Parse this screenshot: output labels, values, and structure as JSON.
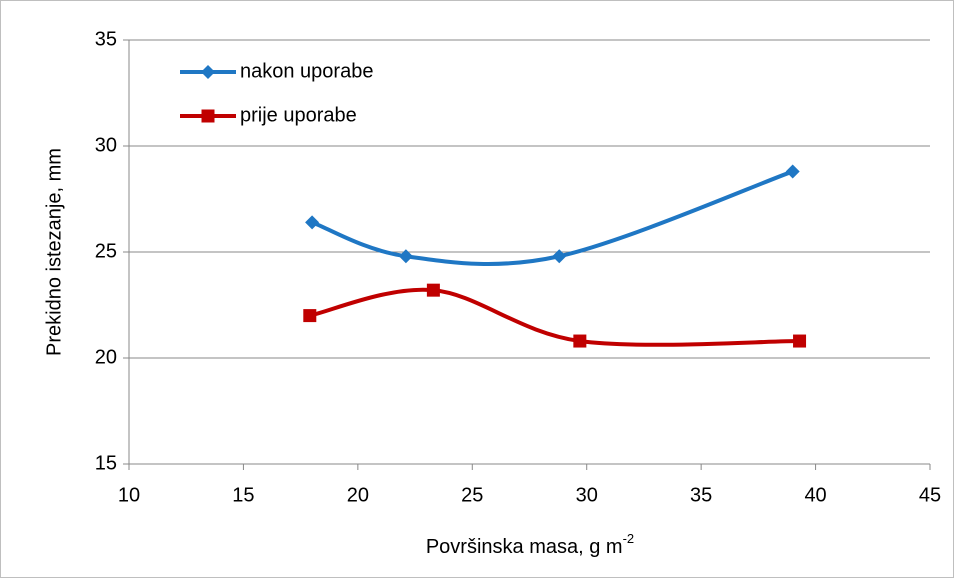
{
  "chart_data": {
    "type": "line",
    "smooth": true,
    "x_label": "Površinska masa, g m",
    "x_label_superscript": "-2",
    "y_label": "Prekidno istezanje, mm",
    "xlim": [
      10,
      45
    ],
    "xticks": [
      10,
      15,
      20,
      25,
      30,
      35,
      40,
      45
    ],
    "ylim": [
      15,
      35
    ],
    "yticks": [
      15,
      20,
      25,
      30,
      35
    ],
    "grid": true,
    "legend": "top-left",
    "series": [
      {
        "name": "nakon uporabe",
        "color": "#1f77c4",
        "marker": "diamond",
        "x": [
          18.0,
          22.1,
          28.8,
          39.0
        ],
        "values": [
          26.4,
          24.8,
          24.8,
          28.8
        ]
      },
      {
        "name": "prije uporabe",
        "color": "#c00000",
        "marker": "square",
        "x": [
          17.9,
          23.3,
          29.7,
          39.3
        ],
        "values": [
          22.0,
          23.2,
          20.8,
          20.8
        ]
      }
    ]
  }
}
